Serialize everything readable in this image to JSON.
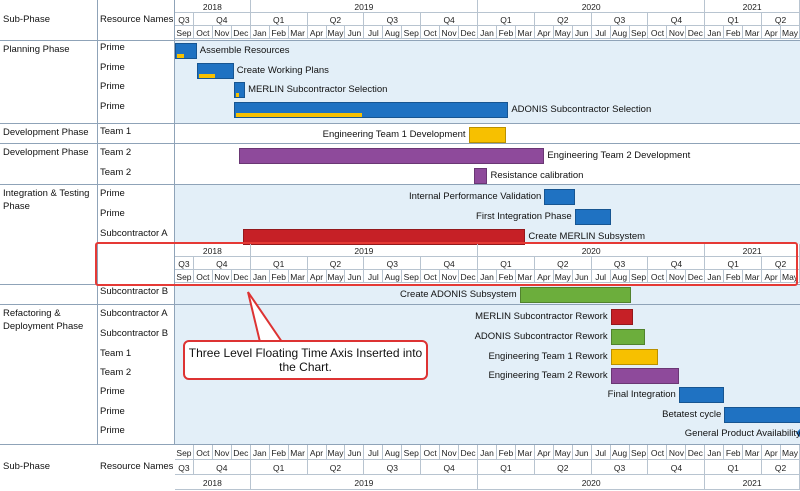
{
  "colors": {
    "blue": "#1f72c2",
    "yellow": "#f7c000",
    "purple": "#8e4a9b",
    "lightpurple": "#9a54a6",
    "red": "#c62026",
    "green": "#6cae3c",
    "diamond": "#1f72c2",
    "phase_bg": "#e3eff8",
    "callout_border": "#d33"
  },
  "header": {
    "sub_phase": "Sub-Phase",
    "resource_names": "Resource Names"
  },
  "footer": {
    "sub_phase": "Sub-Phase",
    "resource_names": "Resource Names"
  },
  "axis": {
    "years": [
      {
        "label": "2018",
        "start": 0,
        "span": 4
      },
      {
        "label": "2019",
        "start": 4,
        "span": 12
      },
      {
        "label": "2020",
        "start": 16,
        "span": 12
      },
      {
        "label": "2021",
        "start": 28,
        "span": 5
      }
    ],
    "quarters": [
      {
        "label": "Q3",
        "start": 0,
        "span": 1
      },
      {
        "label": "Q4",
        "start": 1,
        "span": 3
      },
      {
        "label": "Q1",
        "start": 4,
        "span": 3
      },
      {
        "label": "Q2",
        "start": 7,
        "span": 3
      },
      {
        "label": "Q3",
        "start": 10,
        "span": 3
      },
      {
        "label": "Q4",
        "start": 13,
        "span": 3
      },
      {
        "label": "Q1",
        "start": 16,
        "span": 3
      },
      {
        "label": "Q2",
        "start": 19,
        "span": 3
      },
      {
        "label": "Q3",
        "start": 22,
        "span": 3
      },
      {
        "label": "Q4",
        "start": 25,
        "span": 3
      },
      {
        "label": "Q1",
        "start": 28,
        "span": 3
      },
      {
        "label": "Q2",
        "start": 31,
        "span": 2
      }
    ],
    "months": [
      "Sep",
      "Oct",
      "Nov",
      "Dec",
      "Jan",
      "Feb",
      "Mar",
      "Apr",
      "May",
      "Jun",
      "Jul",
      "Aug",
      "Sep",
      "Oct",
      "Nov",
      "Dec",
      "Jan",
      "Feb",
      "Mar",
      "Apr",
      "May",
      "Jun",
      "Jul",
      "Aug",
      "Sep",
      "Oct",
      "Nov",
      "Dec",
      "Jan",
      "Feb",
      "Mar",
      "Apr",
      "May"
    ]
  },
  "phases": [
    {
      "name": "Planning Phase",
      "rows": [
        {
          "resource": "Prime",
          "label": "Assemble Resources",
          "start": 0.0,
          "end": 1.15,
          "color": "blue",
          "progress_end": 0.5
        },
        {
          "resource": "Prime",
          "label": "Create Working Plans",
          "start": 1.15,
          "end": 3.1,
          "color": "blue",
          "progress_end": 2.1
        },
        {
          "resource": "Prime",
          "label": "MERLIN Subcontractor Selection",
          "start": 3.1,
          "end": 3.7,
          "color": "blue",
          "progress_end": 3.4
        },
        {
          "resource": "Prime",
          "label": "ADONIS Subcontractor Selection",
          "start": 3.1,
          "end": 17.6,
          "color": "blue",
          "progress_end": 9.9
        }
      ]
    },
    {
      "name": "Development Phase",
      "rows": [
        {
          "resource": "Team 1",
          "label": "Engineering Team 1 Development",
          "start": 15.5,
          "end": 17.5,
          "color": "yellow",
          "label_left": true
        }
      ]
    },
    {
      "name": "Development Phase",
      "rows": [
        {
          "resource": "Team 2",
          "label": "Engineering Team 2 Development",
          "start": 3.4,
          "end": 19.5,
          "color": "purple"
        },
        {
          "resource": "Team 2",
          "label": "Resistance calibration",
          "start": 15.8,
          "end": 16.5,
          "color": "purple"
        }
      ]
    },
    {
      "name": "Integration & Testing Phase",
      "rows": [
        {
          "resource": "Prime",
          "label": "Internal Performance Validation",
          "start": 19.5,
          "end": 21.1,
          "color": "blue",
          "label_left": true
        },
        {
          "resource": "Prime",
          "label": "First Integration Phase",
          "start": 21.1,
          "end": 23.0,
          "color": "blue",
          "label_left": true
        },
        {
          "resource": "Subcontractor A",
          "label": "Create MERLIN Subsystem",
          "start": 3.6,
          "end": 18.5,
          "color": "red"
        }
      ]
    },
    {
      "name": "",
      "rows": [
        {
          "resource": "Subcontractor B",
          "label": "Create ADONIS Subsystem",
          "start": 18.2,
          "end": 24.1,
          "color": "green",
          "label_left": true
        }
      ]
    },
    {
      "name": "Refactoring & Deployment Phase",
      "rows": [
        {
          "resource": "Subcontractor A",
          "label": "MERLIN Subcontractor Rework",
          "start": 23.0,
          "end": 24.2,
          "color": "red",
          "label_left": true
        },
        {
          "resource": "Subcontractor B",
          "label": "ADONIS Subcontractor Rework",
          "start": 23.0,
          "end": 24.8,
          "color": "green",
          "label_left": true
        },
        {
          "resource": "Team 1",
          "label": "Engineering Team 1 Rework",
          "start": 23.0,
          "end": 25.5,
          "color": "yellow",
          "label_left": true
        },
        {
          "resource": "Team 2",
          "label": "Engineering Team 2 Rework",
          "start": 23.0,
          "end": 26.6,
          "color": "purple",
          "label_left": true
        },
        {
          "resource": "Prime",
          "label": "Final Integration",
          "start": 26.6,
          "end": 29.0,
          "color": "blue",
          "label_left": true
        },
        {
          "resource": "Prime",
          "label": "Betatest cycle",
          "start": 29.0,
          "end": 33.2,
          "color": "blue",
          "label_left": true
        },
        {
          "resource": "Prime",
          "label": "General Product Availability",
          "start": 33.2,
          "end": 33.2,
          "color": "diamond",
          "label_left": true,
          "milestone": true
        }
      ]
    }
  ],
  "callout": {
    "text": "Three Level Floating Time Axis Inserted into the Chart."
  }
}
